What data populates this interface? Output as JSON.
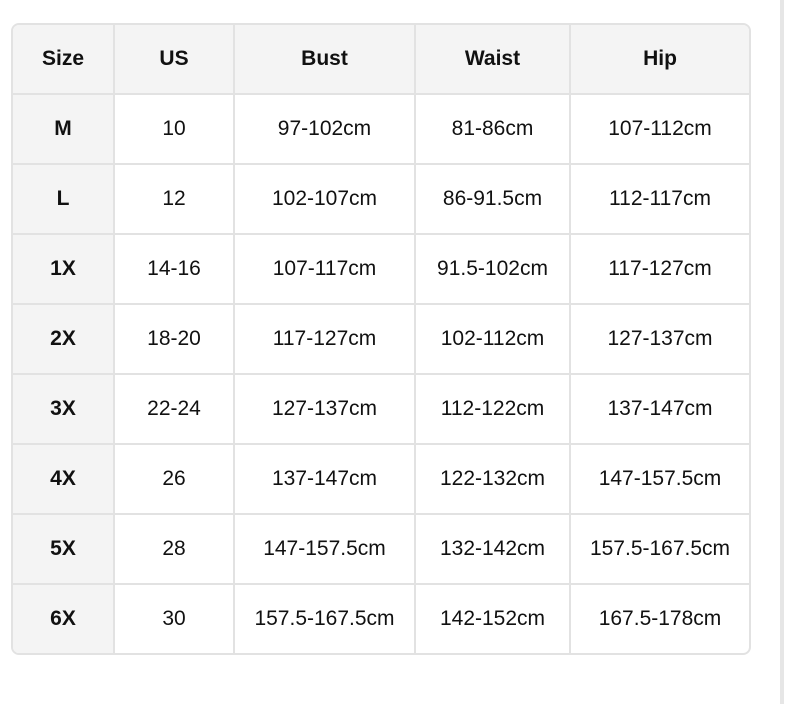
{
  "table": {
    "headers": [
      "Size",
      "US",
      "Bust",
      "Waist",
      "Hip"
    ],
    "rows": [
      [
        "M",
        "10",
        "97-102cm",
        "81-86cm",
        "107-112cm"
      ],
      [
        "L",
        "12",
        "102-107cm",
        "86-91.5cm",
        "112-117cm"
      ],
      [
        "1X",
        "14-16",
        "107-117cm",
        "91.5-102cm",
        "117-127cm"
      ],
      [
        "2X",
        "18-20",
        "117-127cm",
        "102-112cm",
        "127-137cm"
      ],
      [
        "3X",
        "22-24",
        "127-137cm",
        "112-122cm",
        "137-147cm"
      ],
      [
        "4X",
        "26",
        "137-147cm",
        "122-132cm",
        "147-157.5cm"
      ],
      [
        "5X",
        "28",
        "147-157.5cm",
        "132-142cm",
        "157.5-167.5cm"
      ],
      [
        "6X",
        "30",
        "157.5-167.5cm",
        "142-152cm",
        "167.5-178cm"
      ]
    ]
  }
}
